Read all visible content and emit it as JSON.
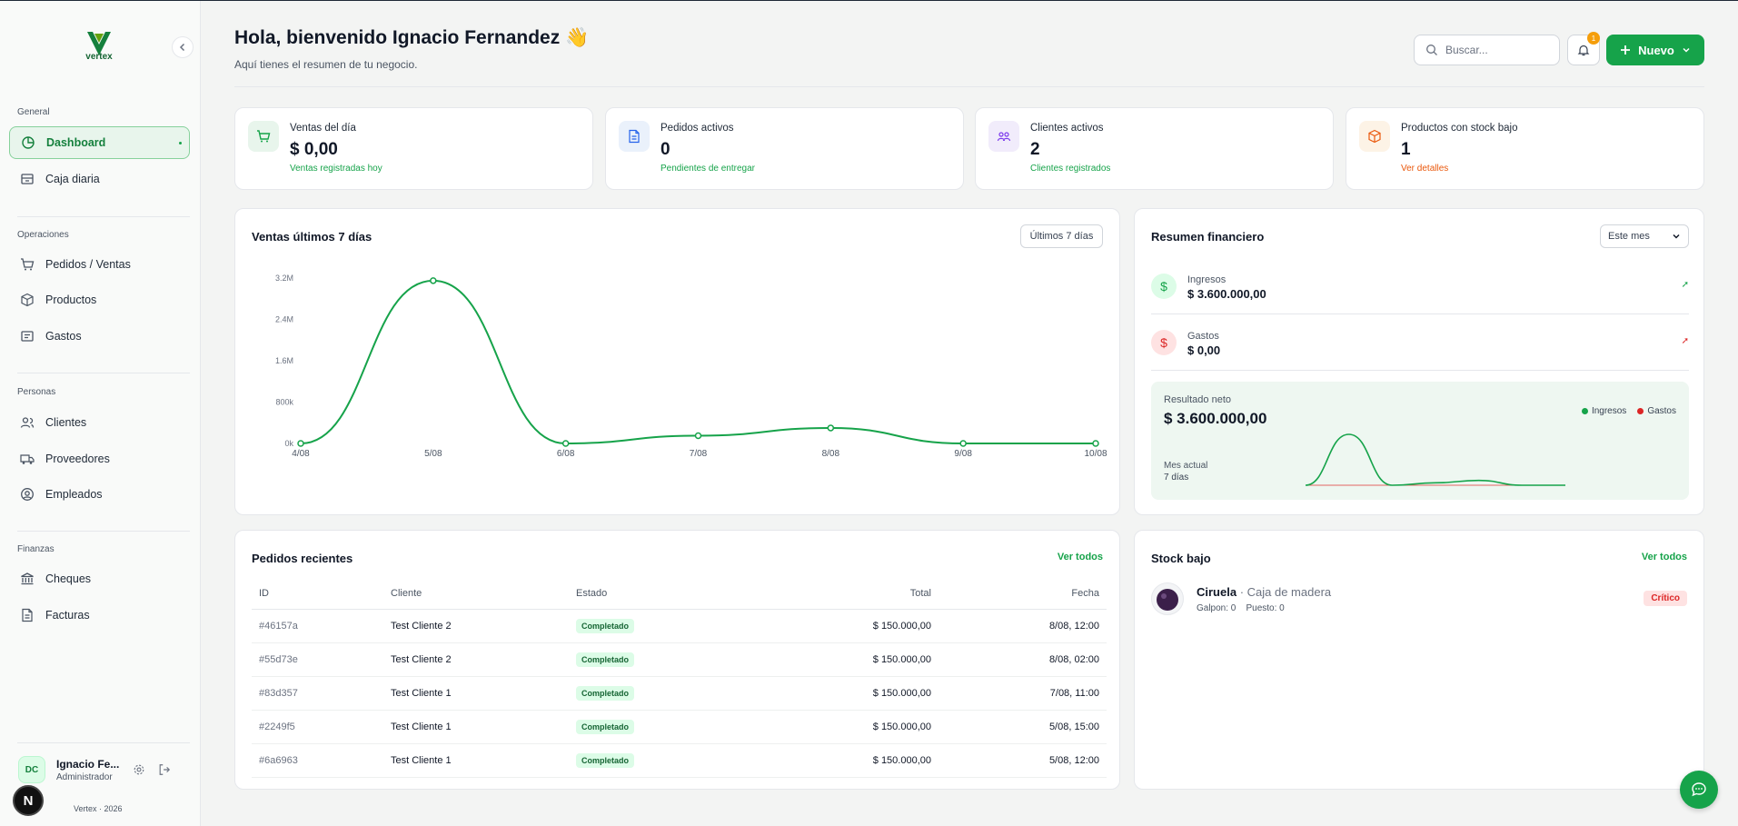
{
  "app": {
    "name": "vertex",
    "footer": "Vertex · 2026"
  },
  "sidebar": {
    "sections": [
      {
        "title": "General"
      },
      {
        "title": "Operaciones"
      },
      {
        "title": "Personas"
      },
      {
        "title": "Finanzas"
      }
    ],
    "items": [
      {
        "label": "Dashboard",
        "icon": "dashboard-icon"
      },
      {
        "label": "Caja diaria",
        "icon": "store-icon"
      },
      {
        "label": "Pedidos / Ventas",
        "icon": "cart-icon"
      },
      {
        "label": "Productos",
        "icon": "box-icon"
      },
      {
        "label": "Gastos",
        "icon": "receipt-icon"
      },
      {
        "label": "Clientes",
        "icon": "users-icon"
      },
      {
        "label": "Proveedores",
        "icon": "truck-icon"
      },
      {
        "label": "Empleados",
        "icon": "at-icon"
      },
      {
        "label": "Cheques",
        "icon": "bank-icon"
      },
      {
        "label": "Facturas",
        "icon": "file-icon"
      }
    ],
    "user": {
      "initials": "DC",
      "name": "Ignacio Fe...",
      "role": "Administrador"
    },
    "next_badge": "N"
  },
  "header": {
    "greeting": "Hola, bienvenido Ignacio Fernandez 👋",
    "subtitle": "Aquí tienes el resumen de tu negocio.",
    "search_placeholder": "Buscar...",
    "notifications_count": "1",
    "new_button": "Nuevo"
  },
  "stats": [
    {
      "label": "Ventas del día",
      "value": "$ 0,00",
      "sub": "Ventas registradas hoy",
      "sub_color": "#16a34a",
      "icon": "cart-icon"
    },
    {
      "label": "Pedidos activos",
      "value": "0",
      "sub": "Pendientes de entregar",
      "sub_color": "#16a34a",
      "icon": "document-icon"
    },
    {
      "label": "Clientes activos",
      "value": "2",
      "sub": "Clientes registrados",
      "sub_color": "#16a34a",
      "icon": "users-icon"
    },
    {
      "label": "Productos con stock bajo",
      "value": "1",
      "sub": "Ver detalles",
      "sub_color": "#ea580c",
      "icon": "package-icon"
    }
  ],
  "sales_chart": {
    "title": "Ventas últimos 7 días",
    "range_button": "Últimos 7 días"
  },
  "chart_data": {
    "type": "line",
    "categories": [
      "4/08",
      "5/08",
      "6/08",
      "7/08",
      "8/08",
      "9/08",
      "10/08"
    ],
    "values": [
      0,
      3150000,
      0,
      150000,
      300000,
      0,
      0
    ],
    "yticks": [
      "0k",
      "800k",
      "1.6M",
      "2.4M",
      "3.2M"
    ],
    "ylim": [
      0,
      3200000
    ],
    "color": "#16a34a"
  },
  "financial": {
    "title": "Resumen financiero",
    "period": "Este mes",
    "income_label": "Ingresos",
    "income_value": "$ 3.600.000,00",
    "expense_label": "Gastos",
    "expense_value": "$ 0,00",
    "net_label": "Resultado neto",
    "net_value": "$ 3.600.000,00",
    "legend_income": "Ingresos",
    "legend_expense": "Gastos",
    "month_label": "Mes actual",
    "days_label": "7 días",
    "mini_income": [
      0,
      3150000,
      0,
      150000,
      300000,
      0,
      0
    ],
    "mini_expense": [
      0,
      0,
      0,
      0,
      0,
      0,
      0
    ]
  },
  "orders": {
    "title": "Pedidos recientes",
    "view_all": "Ver todos",
    "columns": [
      "ID",
      "Cliente",
      "Estado",
      "Total",
      "Fecha"
    ],
    "rows": [
      {
        "id": "#46157a",
        "client": "Test Cliente 2",
        "status": "Completado",
        "total": "$ 150.000,00",
        "date": "8/08, 12:00"
      },
      {
        "id": "#55d73e",
        "client": "Test Cliente 2",
        "status": "Completado",
        "total": "$ 150.000,00",
        "date": "8/08, 02:00"
      },
      {
        "id": "#83d357",
        "client": "Test Cliente 1",
        "status": "Completado",
        "total": "$ 150.000,00",
        "date": "7/08, 11:00"
      },
      {
        "id": "#2249f5",
        "client": "Test Cliente 1",
        "status": "Completado",
        "total": "$ 150.000,00",
        "date": "5/08, 15:00"
      },
      {
        "id": "#6a6963",
        "client": "Test Cliente 1",
        "status": "Completado",
        "total": "$ 150.000,00",
        "date": "5/08, 12:00"
      }
    ]
  },
  "stock": {
    "title": "Stock bajo",
    "view_all": "Ver todos",
    "item": {
      "name": "Ciruela",
      "sep": " · ",
      "package": "Caja de madera",
      "meta": "Galpon: 0    Puesto: 0",
      "badge": "Crítico"
    }
  }
}
